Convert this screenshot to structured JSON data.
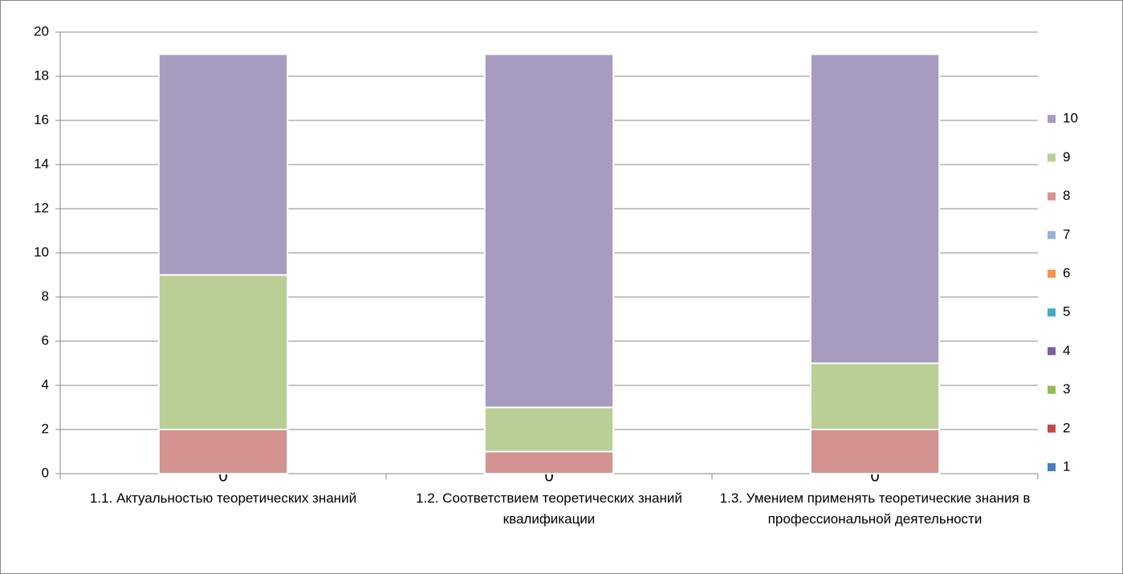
{
  "chart_data": {
    "type": "stacked_bar",
    "categories": [
      "1.1. Актуальностью теоретических знаний",
      "1.2. Соответствием теоретических знаний квалификации",
      "1.3. Умением применять теоретические знания в профессиональной деятельности"
    ],
    "series": [
      {
        "name": "1",
        "color": "#4a7ebb",
        "values": [
          0,
          0,
          0
        ],
        "show_labels": true
      },
      {
        "name": "2",
        "color": "#be4b48",
        "values": [
          0,
          0,
          0
        ]
      },
      {
        "name": "3",
        "color": "#98b954",
        "values": [
          0,
          0,
          0
        ]
      },
      {
        "name": "4",
        "color": "#7d60a0",
        "values": [
          0,
          0,
          0
        ]
      },
      {
        "name": "5",
        "color": "#46aac5",
        "values": [
          0,
          0,
          0
        ]
      },
      {
        "name": "6",
        "color": "#f79646",
        "values": [
          0,
          0,
          0
        ]
      },
      {
        "name": "7",
        "color": "#95b3d7",
        "values": [
          0,
          0,
          0
        ]
      },
      {
        "name": "8",
        "color": "#d39390",
        "values": [
          2,
          1,
          2
        ]
      },
      {
        "name": "9",
        "color": "#b9cf96",
        "values": [
          7,
          2,
          3
        ]
      },
      {
        "name": "10",
        "color": "#a89bc0",
        "values": [
          10,
          16,
          14
        ]
      }
    ],
    "ylim": [
      0,
      20
    ],
    "yticks": [
      0,
      2,
      4,
      6,
      8,
      10,
      12,
      14,
      16,
      18,
      20
    ],
    "grid": true,
    "legend": "right"
  }
}
